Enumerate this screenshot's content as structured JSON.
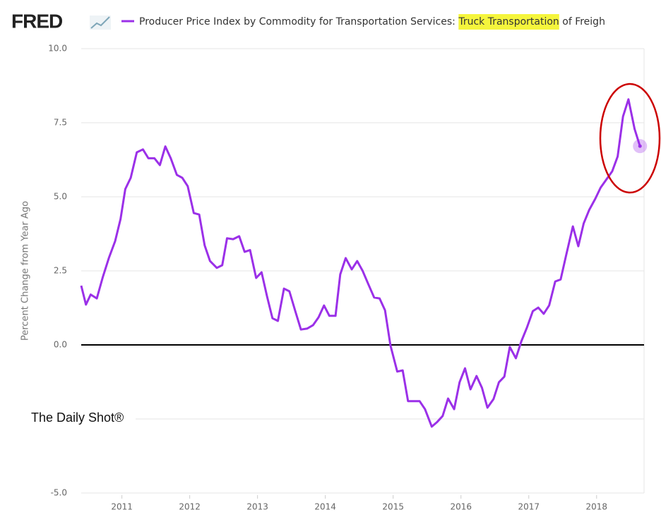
{
  "chart_data": {
    "type": "line",
    "logo": "FRED",
    "title": "Producer Price Index by Commodity for Transportation Services: ",
    "title_highlight": "Truck Transportation",
    "title_rest": " of Freigh",
    "ylabel": "Percent Change from Year Ago",
    "annotation": "The Daily Shot®",
    "xlim": [
      2010.4,
      2018.7
    ],
    "xticks": [
      2011,
      2012,
      2013,
      2014,
      2015,
      2016,
      2017,
      2018
    ],
    "ylim": [
      -5,
      10
    ],
    "yticks": [
      {
        "value": -5,
        "label": "-5.0"
      },
      -2.5,
      {
        "value": 0,
        "label": "0.0"
      },
      2.5,
      {
        "value": 5,
        "label": "5.0"
      },
      7.5,
      {
        "value": 10,
        "label": "10.0"
      }
    ],
    "grid": true,
    "x": [
      2010.4,
      2010.47,
      2010.54,
      2010.63,
      2010.72,
      2010.81,
      2010.9,
      2010.98,
      2011.05,
      2011.13,
      2011.22,
      2011.31,
      2011.39,
      2011.48,
      2011.56,
      2011.64,
      2011.72,
      2011.81,
      2011.89,
      2011.97,
      2012.06,
      2012.14,
      2012.22,
      2012.3,
      2012.4,
      2012.48,
      2012.55,
      2012.64,
      2012.73,
      2012.81,
      2012.89,
      2012.98,
      2013.06,
      2013.14,
      2013.22,
      2013.3,
      2013.39,
      2013.47,
      2013.56,
      2013.64,
      2013.73,
      2013.82,
      2013.9,
      2013.98,
      2014.06,
      2014.15,
      2014.22,
      2014.3,
      2014.39,
      2014.47,
      2014.55,
      2014.63,
      2014.72,
      2014.8,
      2014.88,
      2014.96,
      2015.06,
      2015.14,
      2015.22,
      2015.31,
      2015.39,
      2015.47,
      2015.57,
      2015.65,
      2015.73,
      2015.81,
      2015.9,
      2015.98,
      2016.06,
      2016.14,
      2016.23,
      2016.31,
      2016.39,
      2016.48,
      2016.56,
      2016.64,
      2016.72,
      2016.81,
      2016.89,
      2016.97,
      2017.06,
      2017.14,
      2017.22,
      2017.3,
      2017.39,
      2017.47,
      2017.55,
      2017.65,
      2017.73,
      2017.81,
      2017.89,
      2017.98,
      2018.06,
      2018.14,
      2018.23,
      2018.31,
      2018.39,
      2018.47,
      2018.56,
      2018.64
    ],
    "series": [
      {
        "name": "Producer Price Index by Commodity for Transportation Services: Truck Transportation of Freigh",
        "color": "#9b30e8",
        "values": [
          2.0,
          1.36,
          1.7,
          1.57,
          2.3,
          2.95,
          3.5,
          4.25,
          5.26,
          5.64,
          6.5,
          6.6,
          6.3,
          6.3,
          6.07,
          6.7,
          6.3,
          5.74,
          5.64,
          5.36,
          4.45,
          4.4,
          3.36,
          2.83,
          2.6,
          2.69,
          3.6,
          3.57,
          3.67,
          3.14,
          3.2,
          2.26,
          2.45,
          1.64,
          0.9,
          0.81,
          1.9,
          1.81,
          1.12,
          0.52,
          0.55,
          0.67,
          0.93,
          1.33,
          0.98,
          0.98,
          2.38,
          2.93,
          2.55,
          2.83,
          2.5,
          2.07,
          1.6,
          1.57,
          1.17,
          -0.02,
          -0.9,
          -0.86,
          -1.9,
          -1.9,
          -1.9,
          -2.17,
          -2.76,
          -2.6,
          -2.4,
          -1.81,
          -2.17,
          -1.26,
          -0.79,
          -1.5,
          -1.05,
          -1.45,
          -2.12,
          -1.83,
          -1.26,
          -1.07,
          -0.07,
          -0.45,
          0.12,
          0.57,
          1.14,
          1.26,
          1.05,
          1.33,
          2.14,
          2.21,
          3.02,
          4.0,
          3.33,
          4.1,
          4.55,
          4.93,
          5.31,
          5.57,
          5.86,
          6.36,
          7.71,
          8.29,
          7.29,
          6.71
        ]
      }
    ]
  }
}
